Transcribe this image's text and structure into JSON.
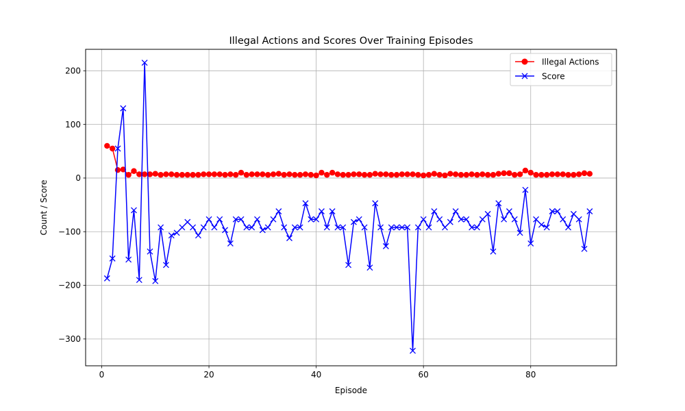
{
  "chart_data": {
    "type": "line",
    "title": "Illegal Actions and Scores Over Training Episodes",
    "xlabel": "Episode",
    "ylabel": "Count / Score",
    "xlim": [
      -3,
      96
    ],
    "ylim": [
      -350,
      240
    ],
    "xticks": [
      0,
      20,
      40,
      60,
      80
    ],
    "yticks": [
      -300,
      -200,
      -100,
      0,
      100,
      200
    ],
    "ytick_labels": [
      "−300",
      "−200",
      "−100",
      "0",
      "100",
      "200"
    ],
    "grid": true,
    "legend_position": "top-right",
    "x": [
      1,
      2,
      3,
      4,
      5,
      6,
      7,
      8,
      9,
      10,
      11,
      12,
      13,
      14,
      15,
      16,
      17,
      18,
      19,
      20,
      21,
      22,
      23,
      24,
      25,
      26,
      27,
      28,
      29,
      30,
      31,
      32,
      33,
      34,
      35,
      36,
      37,
      38,
      39,
      40,
      41,
      42,
      43,
      44,
      45,
      46,
      47,
      48,
      49,
      50,
      51,
      52,
      53,
      54,
      55,
      56,
      57,
      58,
      59,
      60,
      61,
      62,
      63,
      64,
      65,
      66,
      67,
      68,
      69,
      70,
      71,
      72,
      73,
      74,
      75,
      76,
      77,
      78,
      79,
      80,
      81,
      82,
      83,
      84,
      85,
      86,
      87,
      88,
      89,
      90,
      91
    ],
    "series": [
      {
        "name": "Illegal Actions",
        "color": "#ff0000",
        "marker": "circle",
        "values": [
          60,
          55,
          15,
          16,
          6,
          13,
          7,
          7,
          7,
          8,
          6,
          7,
          7,
          6,
          6,
          6,
          6,
          6,
          7,
          7,
          7,
          7,
          6,
          7,
          6,
          10,
          6,
          7,
          7,
          7,
          6,
          7,
          8,
          6,
          7,
          6,
          6,
          7,
          6,
          5,
          10,
          6,
          10,
          7,
          6,
          6,
          7,
          7,
          6,
          6,
          8,
          7,
          7,
          6,
          6,
          7,
          7,
          7,
          6,
          5,
          6,
          8,
          6,
          5,
          8,
          7,
          6,
          6,
          7,
          6,
          7,
          6,
          6,
          8,
          9,
          9,
          6,
          7,
          14,
          10,
          6,
          6,
          6,
          7,
          7,
          7,
          6,
          6,
          7,
          9,
          8
        ]
      },
      {
        "name": "Score",
        "color": "#0000ff",
        "marker": "x",
        "values": [
          -187,
          -150,
          55,
          130,
          -152,
          -60,
          -190,
          215,
          -137,
          -192,
          -92,
          -162,
          -107,
          -102,
          -92,
          -82,
          -92,
          -107,
          -92,
          -77,
          -92,
          -77,
          -97,
          -122,
          -77,
          -77,
          -92,
          -92,
          -77,
          -97,
          -92,
          -77,
          -62,
          -92,
          -112,
          -92,
          -92,
          -47,
          -77,
          -77,
          -62,
          -92,
          -62,
          -92,
          -92,
          -162,
          -82,
          -77,
          -92,
          -167,
          -47,
          -92,
          -127,
          -92,
          -92,
          -92,
          -92,
          -322,
          -92,
          -77,
          -92,
          -62,
          -77,
          -92,
          -82,
          -62,
          -77,
          -77,
          -92,
          -92,
          -77,
          -67,
          -137,
          -47,
          -77,
          -62,
          -77,
          -102,
          -22,
          -122,
          -77,
          -87,
          -92,
          -62,
          -62,
          -77,
          -92,
          -67,
          -77,
          -132,
          -62
        ]
      }
    ]
  }
}
